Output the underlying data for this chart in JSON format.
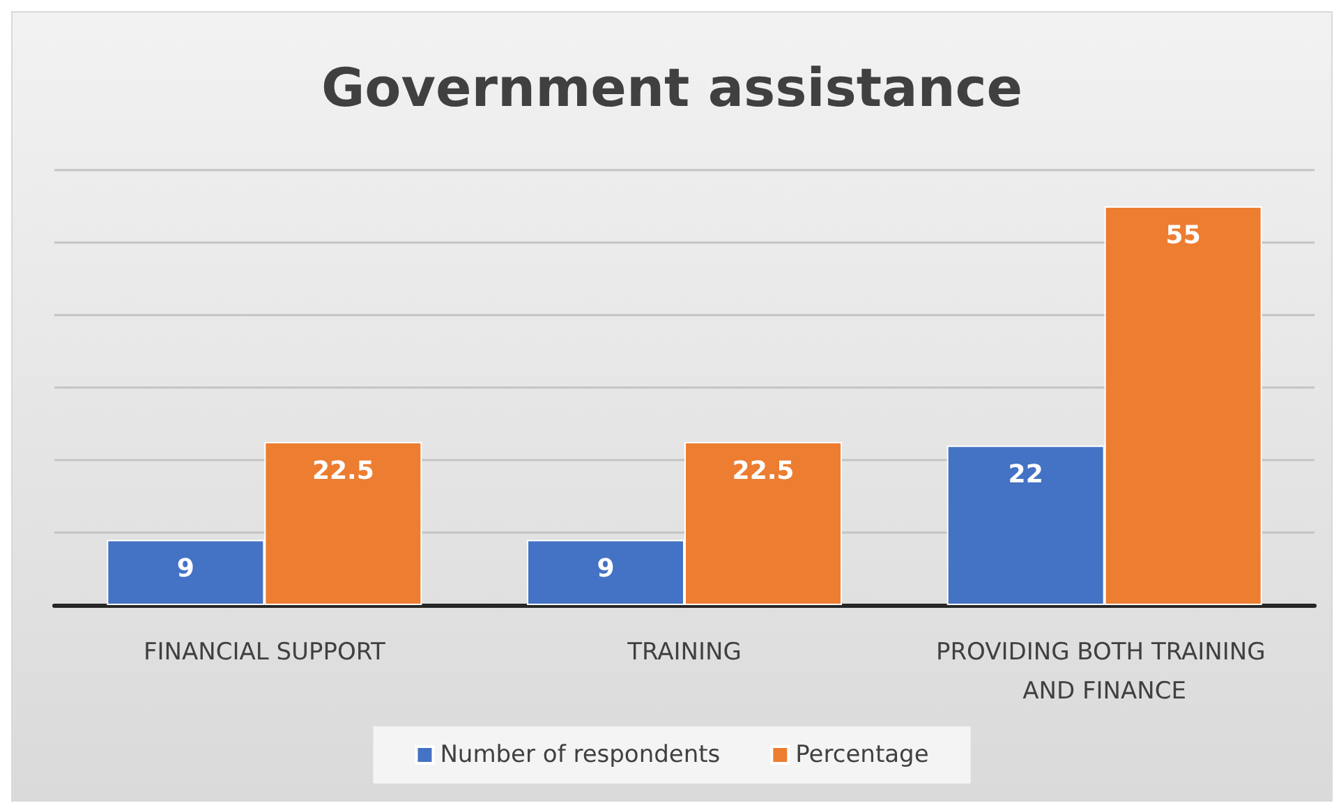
{
  "chart_data": {
    "type": "bar",
    "title": "Government assistance",
    "categories": [
      "FINANCIAL SUPPORT",
      "TRAINING",
      "PROVIDING BOTH TRAINING AND FINANCE"
    ],
    "series": [
      {
        "name": "Number of respondents",
        "color": "#4472c4",
        "values": [
          9,
          9,
          22
        ]
      },
      {
        "name": "Percentage",
        "color": "#ed7d31",
        "values": [
          22.5,
          22.5,
          55
        ]
      }
    ],
    "tick_labels": "x",
    "grid": "y",
    "legend": "bottom",
    "data_labels": true
  }
}
